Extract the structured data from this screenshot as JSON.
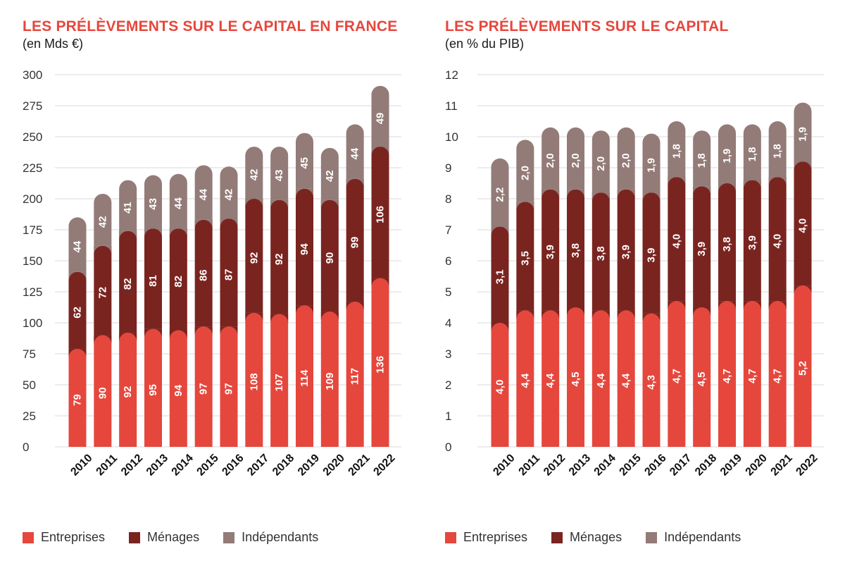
{
  "colors": {
    "entreprises": "#e5473d",
    "menages": "#7a2420",
    "independants": "#937b78",
    "title": "#e5473d",
    "grid": "#d9d9d9"
  },
  "legend": {
    "entreprises": "Entreprises",
    "menages": "Ménages",
    "independants": "Indépendants"
  },
  "charts": {
    "left": {
      "title": "LES PRÉLÈVEMENTS SUR LE CAPITAL EN FRANCE",
      "subtitle": "(en Mds €)"
    },
    "right": {
      "title": "LES PRÉLÈVEMENTS SUR LE CAPITAL",
      "subtitle": "(en % du PIB)"
    }
  },
  "chart_data": [
    {
      "type": "bar",
      "stacked": true,
      "title": "LES PRÉLÈVEMENTS SUR LE CAPITAL EN FRANCE",
      "subtitle": "(en Mds €)",
      "categories": [
        "2010",
        "2011",
        "2012",
        "2013",
        "2014",
        "2015",
        "2016",
        "2017",
        "2018",
        "2019",
        "2020",
        "2021",
        "2022"
      ],
      "series": [
        {
          "name": "Entreprises",
          "values": [
            79,
            90,
            92,
            95,
            94,
            97,
            97,
            108,
            107,
            114,
            109,
            117,
            136
          ],
          "labels": [
            "79",
            "90",
            "92",
            "95",
            "94",
            "97",
            "97",
            "108",
            "107",
            "114",
            "109",
            "117",
            "136"
          ]
        },
        {
          "name": "Ménages",
          "values": [
            62,
            72,
            82,
            81,
            82,
            86,
            87,
            92,
            92,
            94,
            90,
            99,
            106
          ],
          "labels": [
            "62",
            "72",
            "82",
            "81",
            "82",
            "86",
            "87",
            "92",
            "92",
            "94",
            "90",
            "99",
            "106"
          ]
        },
        {
          "name": "Indépendants",
          "values": [
            44,
            42,
            41,
            43,
            44,
            44,
            42,
            42,
            43,
            45,
            42,
            44,
            49
          ],
          "labels": [
            "44",
            "42",
            "41",
            "43",
            "44",
            "44",
            "42",
            "42",
            "43",
            "45",
            "42",
            "44",
            "49"
          ]
        }
      ],
      "ylim": [
        0,
        300
      ],
      "yticks": [
        0,
        25,
        50,
        75,
        100,
        125,
        150,
        175,
        200,
        225,
        250,
        275,
        300
      ],
      "ytick_labels": [
        "0",
        "25",
        "50",
        "75",
        "100",
        "125",
        "150",
        "175",
        "200",
        "225",
        "250",
        "275",
        "300"
      ],
      "grid": true,
      "legend_position": "bottom-left"
    },
    {
      "type": "bar",
      "stacked": true,
      "title": "LES PRÉLÈVEMENTS SUR LE CAPITAL",
      "subtitle": "(en % du PIB)",
      "categories": [
        "2010",
        "2011",
        "2012",
        "2013",
        "2014",
        "2015",
        "2016",
        "2017",
        "2018",
        "2019",
        "2020",
        "2021",
        "2022"
      ],
      "series": [
        {
          "name": "Entreprises",
          "values": [
            4.0,
            4.4,
            4.4,
            4.5,
            4.4,
            4.4,
            4.3,
            4.7,
            4.5,
            4.7,
            4.7,
            4.7,
            5.2
          ],
          "labels": [
            "4,0",
            "4,4",
            "4,4",
            "4,5",
            "4,4",
            "4,4",
            "4,3",
            "4,7",
            "4,5",
            "4,7",
            "4,7",
            "4,7",
            "5,2"
          ]
        },
        {
          "name": "Ménages",
          "values": [
            3.1,
            3.5,
            3.9,
            3.8,
            3.8,
            3.9,
            3.9,
            4.0,
            3.9,
            3.8,
            3.9,
            4.0,
            4.0
          ],
          "labels": [
            "3,1",
            "3,5",
            "3,9",
            "3,8",
            "3,8",
            "3,9",
            "3,9",
            "4,0",
            "3,9",
            "3,8",
            "3,9",
            "4,0",
            "4,0"
          ]
        },
        {
          "name": "Indépendants",
          "values": [
            2.2,
            2.0,
            2.0,
            2.0,
            2.0,
            2.0,
            1.9,
            1.8,
            1.8,
            1.9,
            1.8,
            1.8,
            1.9
          ],
          "labels": [
            "2,2",
            "2,0",
            "2,0",
            "2,0",
            "2,0",
            "2,0",
            "1,9",
            "1,8",
            "1,8",
            "1,9",
            "1,8",
            "1,8",
            "1,9"
          ]
        }
      ],
      "ylim": [
        0,
        12
      ],
      "yticks": [
        0,
        1,
        2,
        3,
        4,
        5,
        6,
        7,
        8,
        9,
        10,
        11,
        12
      ],
      "ytick_labels": [
        "0",
        "1",
        "2",
        "3",
        "4",
        "5",
        "6",
        "7",
        "8",
        "9",
        "10",
        "11",
        "12"
      ],
      "grid": true,
      "legend_position": "bottom-left"
    }
  ]
}
